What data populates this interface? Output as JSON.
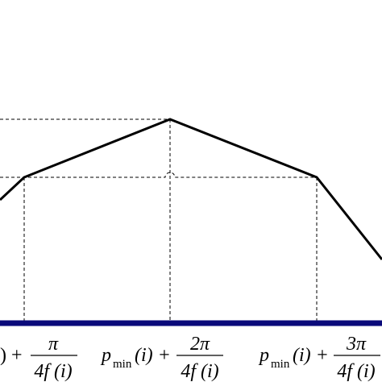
{
  "labels": [
    {
      "prefix": ") +",
      "numerator": "π",
      "denominator": "4f (i)"
    },
    {
      "symbol": "p",
      "subscript": "min",
      "prefix": "(i) +",
      "numerator": "2π",
      "denominator": "4f (i)"
    },
    {
      "symbol": "p",
      "subscript": "min",
      "prefix": "(i) +",
      "numerator": "3π",
      "denominator": "4f (i)"
    }
  ]
}
